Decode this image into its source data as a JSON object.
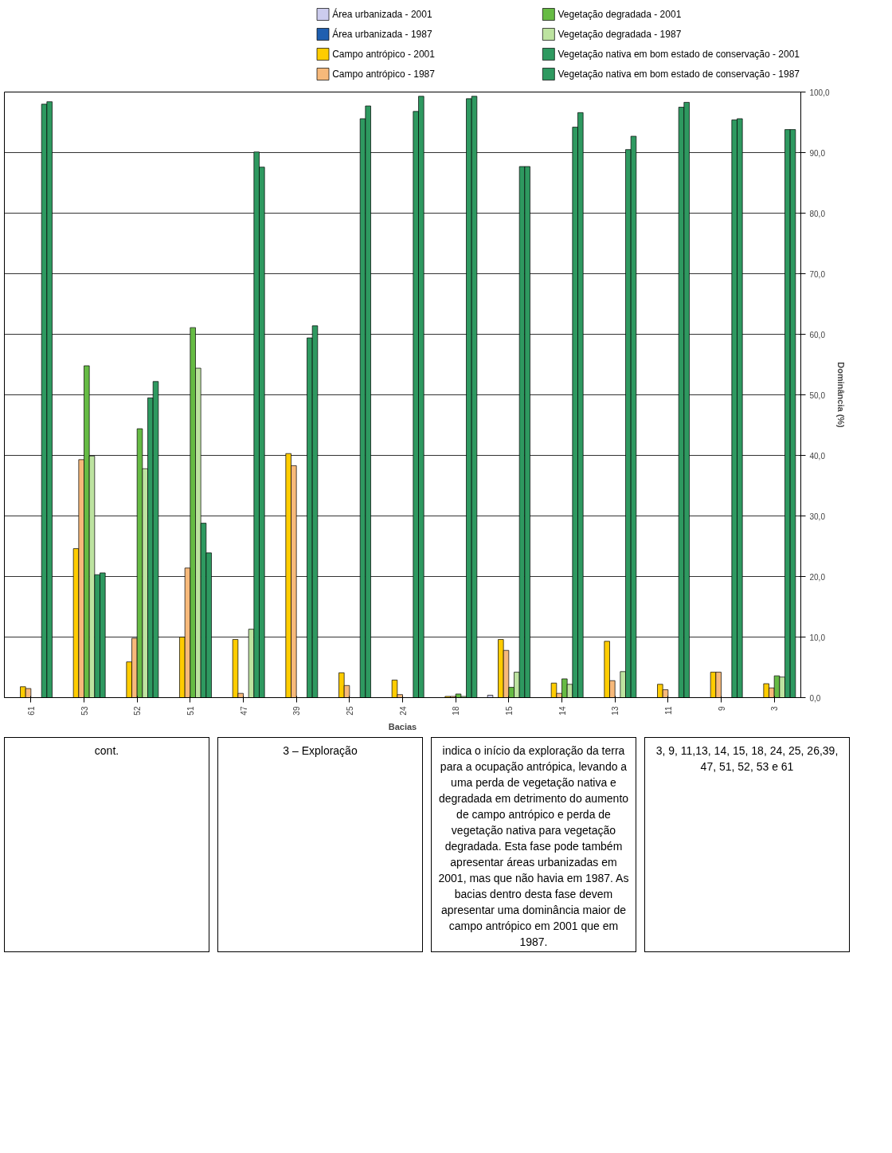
{
  "chart_data": {
    "type": "bar",
    "xlabel": "Bacias",
    "ylabel": "Dominância (%)",
    "categories": [
      "61",
      "53",
      "52",
      "51",
      "47",
      "39",
      "25",
      "24",
      "18",
      "15",
      "14",
      "13",
      "11",
      "9",
      "3"
    ],
    "series": [
      {
        "name": "Área urbanizada - 2001",
        "color": "#ccccee",
        "values": [
          0,
          0,
          0,
          0,
          0,
          0,
          0,
          0,
          0,
          0.4,
          0,
          0,
          0,
          0,
          0
        ]
      },
      {
        "name": "Área urbanizada - 1987",
        "color": "#1f5fb0",
        "values": [
          0,
          0,
          0,
          0,
          0,
          0,
          0,
          0,
          0,
          0,
          0,
          0,
          0,
          0,
          0
        ]
      },
      {
        "name": "Campo antrópico - 2001",
        "color": "#ffcc00",
        "values": [
          1.8,
          24.6,
          5.9,
          10.0,
          9.6,
          40.3,
          4.1,
          2.9,
          0.2,
          9.6,
          2.4,
          9.3,
          2.2,
          4.2,
          2.3
        ]
      },
      {
        "name": "Campo antrópico - 1987",
        "color": "#f7b97a",
        "values": [
          1.5,
          39.3,
          9.8,
          21.4,
          0.7,
          38.3,
          2.0,
          0.5,
          0.2,
          7.8,
          0.7,
          2.8,
          1.3,
          4.2,
          1.6
        ]
      },
      {
        "name": "Vegetação degradada - 2001",
        "color": "#66bb44",
        "values": [
          0,
          54.8,
          44.4,
          61.1,
          0,
          0,
          0,
          0,
          0.6,
          1.7,
          3.1,
          0,
          0,
          0,
          3.6
        ]
      },
      {
        "name": "Vegetação degradada - 1987",
        "color": "#bde3a0",
        "values": [
          0,
          39.9,
          37.8,
          54.4,
          11.3,
          0,
          0,
          0,
          0.2,
          4.2,
          2.2,
          4.3,
          0,
          0,
          3.4
        ]
      },
      {
        "name": "Vegetação nativa em bom estado de conservação - 2001",
        "color": "#2e9960",
        "values": [
          98.0,
          20.3,
          49.5,
          28.8,
          90.1,
          59.4,
          95.6,
          96.8,
          98.9,
          87.7,
          94.2,
          90.5,
          97.5,
          95.4,
          93.8
        ]
      },
      {
        "name": "Vegetação nativa em bom estado de conservação - 1987",
        "color": "#2e9960",
        "values": [
          98.4,
          20.6,
          52.2,
          23.9,
          87.6,
          61.4,
          97.7,
          99.3,
          99.3,
          87.7,
          96.6,
          92.7,
          98.3,
          95.6,
          93.8
        ]
      }
    ],
    "ylim": [
      0,
      100
    ],
    "yticks": [
      {
        "value": 0,
        "label": "0,0"
      },
      {
        "value": 10,
        "label": "10,0"
      },
      {
        "value": 20,
        "label": "20,0"
      },
      {
        "value": 30,
        "label": "30,0"
      },
      {
        "value": 40,
        "label": "40,0"
      },
      {
        "value": 50,
        "label": "50,0"
      },
      {
        "value": 60,
        "label": "60,0"
      },
      {
        "value": 70,
        "label": "70,0"
      },
      {
        "value": 80,
        "label": "80,0"
      },
      {
        "value": 90,
        "label": "90,0"
      },
      {
        "value": 100,
        "label": "100,0"
      }
    ],
    "grid": "y",
    "legend": "top",
    "annotations": [
      "cont.",
      "3 – Exploração",
      "indica o início da exploração da terra para a ocupação antrópica, levando a uma perda de vegetação nativa e degradada em detrimento do aumento de campo antrópico e perda de vegetação nativa para vegetação degradada. Esta fase pode também apresentar áreas urbanizadas em 2001, mas que não havia em 1987. As bacias dentro desta fase devem apresentar uma dominância maior de campo antrópico em 2001 que em 1987.",
      "3, 9, 11,13, 14, 15, 18, 24, 25, 26,39, 47, 51, 52, 53 e 61"
    ]
  }
}
